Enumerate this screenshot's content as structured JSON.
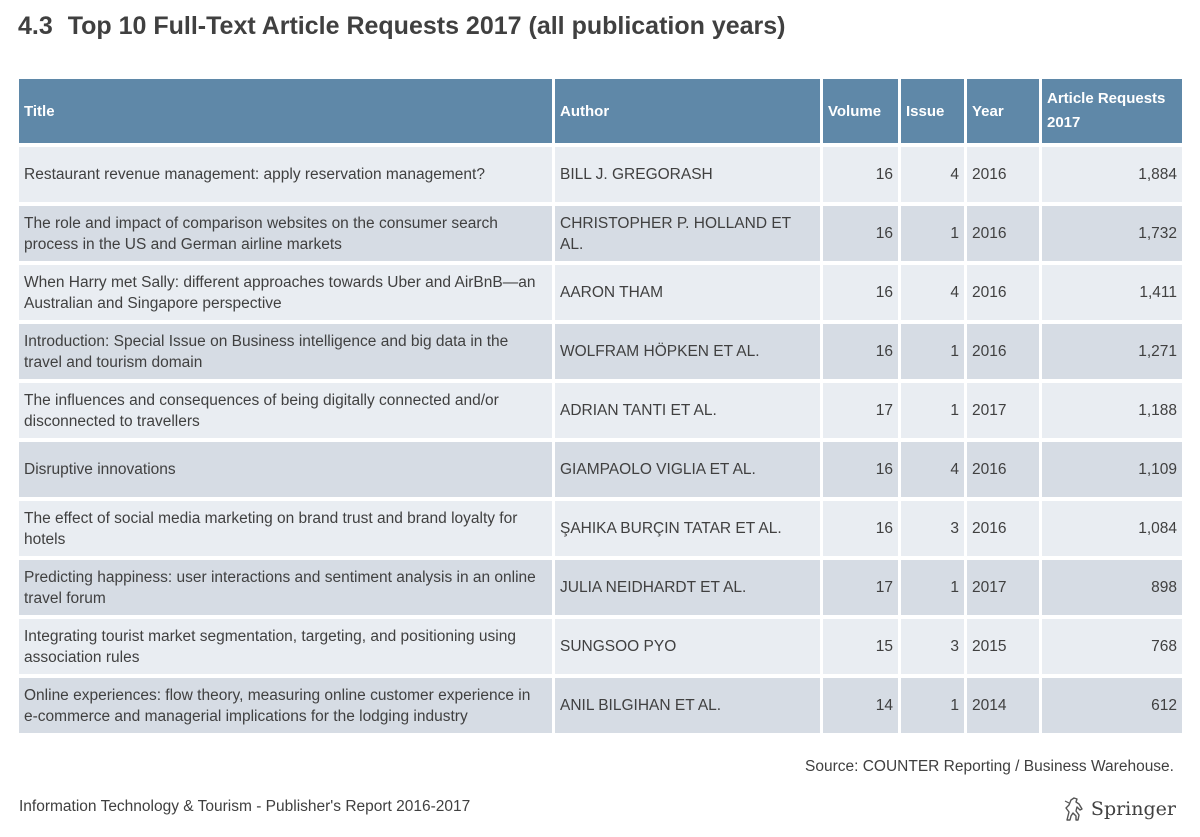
{
  "header": {
    "section_number": "4.3",
    "title": "Top 10 Full-Text Article Requests 2017 (all publication years)"
  },
  "table": {
    "columns": {
      "title": "Title",
      "author": "Author",
      "volume": "Volume",
      "issue": "Issue",
      "year": "Year",
      "requests": "Article Requests 2017"
    },
    "rows": [
      {
        "title": "Restaurant revenue management: apply reservation management?",
        "author": "BILL J. GREGORASH",
        "volume": "16",
        "issue": "4",
        "year": "2016",
        "requests": "1,884"
      },
      {
        "title": "The role and impact of comparison websites on the consumer search process in the US and German airline markets",
        "author": "CHRISTOPHER P. HOLLAND ET AL.",
        "volume": "16",
        "issue": "1",
        "year": "2016",
        "requests": "1,732"
      },
      {
        "title": "When Harry met Sally: different approaches towards Uber and AirBnB—an Australian and Singapore perspective",
        "author": "AARON THAM",
        "volume": "16",
        "issue": "4",
        "year": "2016",
        "requests": "1,411"
      },
      {
        "title": "Introduction: Special Issue on Business intelligence and big data in the travel and tourism domain",
        "author": "WOLFRAM HÖPKEN ET AL.",
        "volume": "16",
        "issue": "1",
        "year": "2016",
        "requests": "1,271"
      },
      {
        "title": "The influences and consequences of being digitally connected and/or disconnected to travellers",
        "author": "ADRIAN TANTI ET AL.",
        "volume": "17",
        "issue": "1",
        "year": "2017",
        "requests": "1,188"
      },
      {
        "title": "Disruptive innovations",
        "author": "GIAMPAOLO VIGLIA ET AL.",
        "volume": "16",
        "issue": "4",
        "year": "2016",
        "requests": "1,109"
      },
      {
        "title": "The effect of social media marketing on brand trust and brand loyalty for hotels",
        "author": "ŞAHIKA BURÇIN TATAR ET AL.",
        "volume": "16",
        "issue": "3",
        "year": "2016",
        "requests": "1,084"
      },
      {
        "title": "Predicting happiness: user interactions and sentiment analysis in an online travel forum",
        "author": "JULIA NEIDHARDT ET AL.",
        "volume": "17",
        "issue": "1",
        "year": "2017",
        "requests": "898"
      },
      {
        "title": "Integrating tourist market segmentation, targeting, and positioning using association rules",
        "author": "SUNGSOO PYO",
        "volume": "15",
        "issue": "3",
        "year": "2015",
        "requests": "768"
      },
      {
        "title": "Online experiences: flow theory, measuring online customer experience in e-commerce and managerial implications for the lodging industry",
        "author": "ANIL BILGIHAN ET AL.",
        "volume": "14",
        "issue": "1",
        "year": "2014",
        "requests": "612"
      }
    ]
  },
  "source_note": "Source: COUNTER Reporting / Business Warehouse.",
  "footer": {
    "report_name": "Information Technology & Tourism - Publisher's Report 2016-2017",
    "brand_name": "Springer",
    "brand_icon": "springer-horse-icon"
  },
  "colors": {
    "header_bg": "#5f88a8",
    "row_light": "#e9edf2",
    "row_dark": "#d6dce4",
    "text": "#404040"
  }
}
